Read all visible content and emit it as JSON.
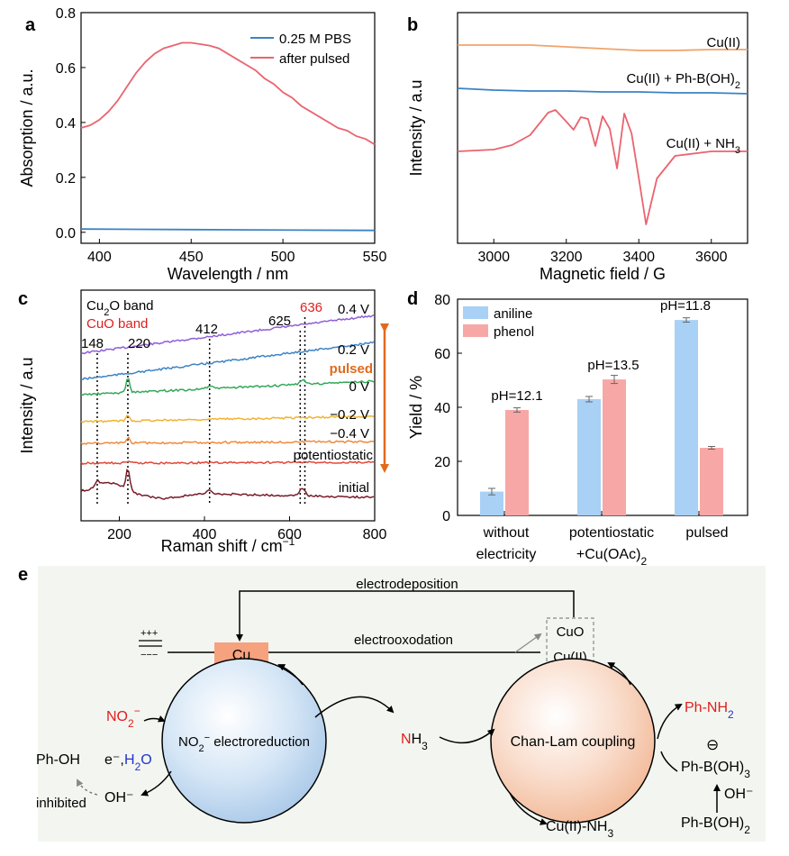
{
  "colors": {
    "blue": "#3b82c4",
    "red_curve": "#e9646f",
    "orange_curve": "#f0a46b",
    "bar_aniline": "#a9d0f5",
    "bar_phenol": "#f7a8a6",
    "text_red": "#e11d1d",
    "text_blue": "#2233cc",
    "pulsed_orange": "#e06a1c",
    "cu_box": "#f6a27e",
    "scheme_bg": "#f3f6f0",
    "raman": [
      "#8f5fd6",
      "#3d84c6",
      "#35a85a",
      "#f2b233",
      "#f08a3c",
      "#e0483a",
      "#7a1d2b"
    ]
  },
  "panel_labels": [
    "a",
    "b",
    "c",
    "d",
    "e"
  ],
  "chart_data": [
    {
      "panel": "a",
      "type": "line",
      "xlabel": "Wavelength / nm",
      "ylabel": "Absorption / a.u.",
      "xlim": [
        390,
        550
      ],
      "ylim": [
        -0.04,
        0.8
      ],
      "xticks": [
        400,
        450,
        500,
        550
      ],
      "yticks": [
        0.0,
        0.2,
        0.4,
        0.6,
        0.8
      ],
      "ytick_labels": [
        "0.0",
        "0.2",
        "0.4",
        "0.6",
        "0.8"
      ],
      "legend": "top-right",
      "series": [
        {
          "name": "0.25 M PBS",
          "color": "blue",
          "x": [
            390,
            420,
            450,
            480,
            510,
            550
          ],
          "y": [
            0.012,
            0.011,
            0.01,
            0.009,
            0.008,
            0.007
          ]
        },
        {
          "name": "after pulsed",
          "color": "red_curve",
          "x": [
            390,
            395,
            400,
            405,
            410,
            415,
            420,
            425,
            430,
            435,
            440,
            445,
            450,
            455,
            460,
            465,
            470,
            475,
            480,
            485,
            490,
            495,
            500,
            505,
            510,
            515,
            520,
            525,
            530,
            535,
            540,
            545,
            550
          ],
          "y": [
            0.38,
            0.39,
            0.41,
            0.44,
            0.48,
            0.53,
            0.58,
            0.62,
            0.65,
            0.67,
            0.68,
            0.69,
            0.69,
            0.685,
            0.68,
            0.67,
            0.65,
            0.63,
            0.61,
            0.59,
            0.56,
            0.54,
            0.51,
            0.49,
            0.46,
            0.44,
            0.42,
            0.4,
            0.38,
            0.37,
            0.35,
            0.34,
            0.32
          ]
        }
      ]
    },
    {
      "panel": "b",
      "type": "line",
      "xlabel": "Magnetic field / G",
      "ylabel": "Intensity / a.u",
      "xlim": [
        2900,
        3700
      ],
      "xticks": [
        3000,
        3200,
        3400,
        3600
      ],
      "series": [
        {
          "name": "Cu(II)",
          "color": "orange_curve",
          "x": [
            2900,
            3000,
            3100,
            3200,
            3300,
            3400,
            3500,
            3600,
            3700
          ],
          "y": [
            0,
            0,
            0,
            -0.2,
            -0.4,
            -0.6,
            -0.6,
            -0.5,
            -0.5
          ]
        },
        {
          "name": "Cu(II) + Ph-B(OH)2",
          "color": "blue",
          "x": [
            2900,
            3000,
            3100,
            3200,
            3300,
            3400,
            3500,
            3600,
            3700
          ],
          "y": [
            0,
            -0.2,
            -0.3,
            -0.3,
            -0.4,
            -0.4,
            -0.5,
            -0.5,
            -0.6
          ]
        },
        {
          "name": "Cu(II) + NH3",
          "color": "red_curve",
          "x": [
            2900,
            3000,
            3050,
            3100,
            3150,
            3170,
            3200,
            3220,
            3240,
            3260,
            3280,
            3300,
            3320,
            3340,
            3360,
            3380,
            3400,
            3420,
            3450,
            3500,
            3600,
            3700
          ],
          "y": [
            0,
            0.2,
            0.7,
            1.8,
            4.3,
            4.6,
            3.3,
            2.4,
            3.8,
            3.6,
            0.6,
            3.9,
            2.5,
            -1.9,
            4.2,
            2.0,
            -3.0,
            -8.1,
            -3.0,
            -0.5,
            0,
            0
          ]
        }
      ]
    },
    {
      "panel": "c",
      "type": "line",
      "xlabel": "Raman shift / cm⁻¹",
      "ylabel": "Intensity / a.u",
      "xlim": [
        110,
        800
      ],
      "xticks": [
        200,
        400,
        600,
        800
      ],
      "series_labels": [
        "0.4 V",
        "0.2 V",
        "0 V",
        "−0.2 V",
        "−0.4 V",
        "potentiostatic",
        "initial"
      ],
      "cu2o_bands": [
        148,
        220,
        412,
        625
      ],
      "cuo_bands": [
        636
      ],
      "band_labels": [
        "148",
        "220",
        "412",
        "625",
        "636"
      ],
      "cu2o_band_label": "Cu₂O band",
      "cuo_band_label": "CuO band",
      "pulsed_label": "pulsed"
    },
    {
      "panel": "d",
      "type": "bar",
      "ylabel": "Yield / %",
      "ylim": [
        0,
        80
      ],
      "yticks": [
        0,
        20,
        40,
        60,
        80
      ],
      "categories": [
        "without electricity",
        "potentiostatic +Cu(OAc)₂",
        "pulsed"
      ],
      "category_lines": [
        [
          "without",
          "electricity"
        ],
        [
          "potentiostatic",
          "+Cu(OAc)₂"
        ],
        [
          "pulsed"
        ]
      ],
      "ph_labels": [
        "pH=12.1",
        "pH=13.5",
        "pH=11.8"
      ],
      "legend": "top-left",
      "series": [
        {
          "name": "aniline",
          "color": "bar_aniline",
          "values": [
            8.8,
            43.0,
            72.3
          ],
          "errors": [
            1.2,
            1.0,
            0.8
          ]
        },
        {
          "name": "phenol",
          "color": "bar_phenol",
          "values": [
            39.0,
            50.3,
            25.0
          ],
          "errors": [
            0.8,
            1.5,
            0.5
          ]
        }
      ]
    }
  ],
  "scheme": {
    "electrodeposition": "electrodeposition",
    "electrooxodation": "electrooxodation",
    "cu": "Cu",
    "cuo": "CuO",
    "cu2": "Cu(II)",
    "battery_plus": "+++",
    "battery_minus": "−−−",
    "no2_left": "NO₂⁻",
    "no2_reduction": "NO₂⁻ electroreduction",
    "nh3": "NH₃",
    "chan_lam": "Chan-Lam coupling",
    "ph_oh": "Ph-OH",
    "e_minus": "e⁻,",
    "h2o": "H₂O",
    "inhibited": "inhibited",
    "oh_minus": "OH⁻",
    "ph_nh2": "Ph-NH₂",
    "borate_charge": "⊖",
    "ph_b_oh3": "Ph-B(OH)₃",
    "oh_minus_right": "OH⁻",
    "ph_b_oh2": "Ph-B(OH)₂",
    "cu2_nh3": "Cu(II)-NH₃"
  }
}
